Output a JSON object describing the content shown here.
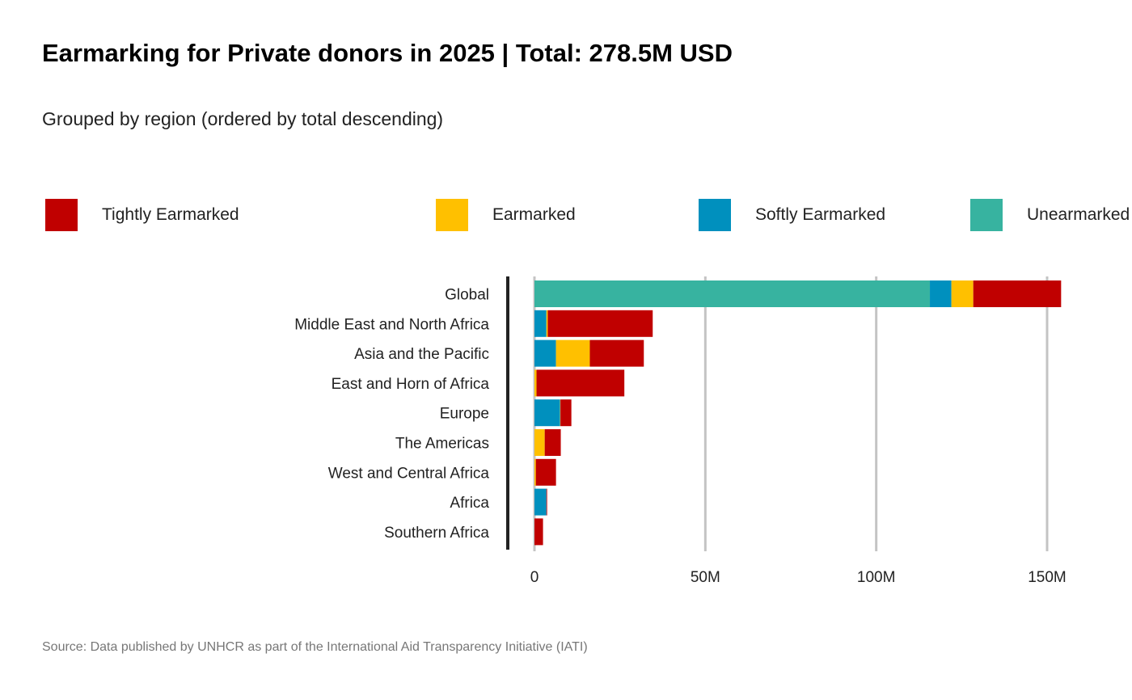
{
  "chart_data": {
    "type": "bar",
    "orientation": "horizontal",
    "stacked": true,
    "title": "Earmarking  for Private donors in 2025 | Total: 278.5M USD",
    "subtitle": "Grouped by region (ordered by total descending)",
    "source": "Source: Data published by UNHCR as part of the International Aid Transparency Initiative (IATI)",
    "categories": [
      "Global",
      "Middle East and North Africa",
      "Asia and the Pacific",
      "East and Horn of Africa",
      "Europe",
      "The Americas",
      "West and Central Africa",
      "Africa",
      "Southern Africa"
    ],
    "series": [
      {
        "name": "Unearmarked",
        "color": "#37b3a0",
        "values": [
          115.7,
          0,
          0,
          0,
          0,
          0,
          0,
          0,
          0
        ]
      },
      {
        "name": "Softly Earmarked",
        "color": "#0090be",
        "values": [
          6.3,
          3.5,
          6.3,
          0,
          7.5,
          0,
          0,
          3.5,
          0
        ]
      },
      {
        "name": "Earmarked",
        "color": "#ffc000",
        "values": [
          6.4,
          0.4,
          9.9,
          0.6,
          0.1,
          3.0,
          0.4,
          0,
          0
        ]
      },
      {
        "name": "Tightly Earmarked",
        "color": "#c00000",
        "values": [
          25.7,
          30.7,
          15.8,
          25.7,
          3.2,
          4.7,
          5.9,
          0.2,
          2.5
        ]
      }
    ],
    "xlim": [
      0,
      160
    ],
    "xticks": [
      0,
      50,
      100,
      150
    ],
    "xtick_labels": [
      "0",
      "50M",
      "100M",
      "150M"
    ],
    "grid": "vertical",
    "legend_placement": "top",
    "legend": [
      "Tightly Earmarked",
      "Earmarked",
      "Softly Earmarked",
      "Unearmarked"
    ]
  }
}
